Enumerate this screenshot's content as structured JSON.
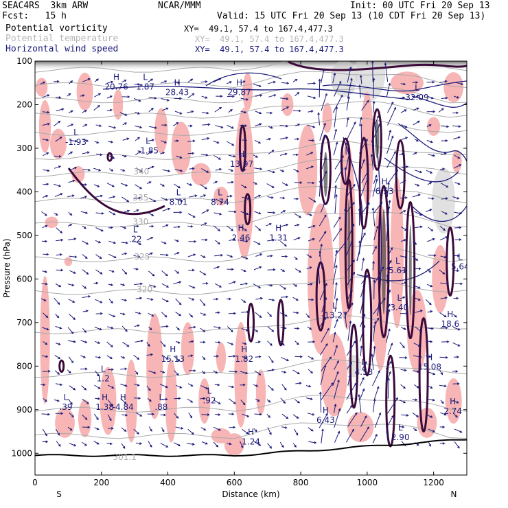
{
  "header": {
    "model": "SEAC4RS  3km ARW",
    "org": "NCAR/MMM",
    "init": "Init: 00 UTC Fri 20 Sep 13",
    "fcst": "Fcst:   15 h",
    "valid": "Valid: 15 UTC Fri 20 Sep 13 (10 CDT Fri 20 Sep 13)"
  },
  "legend": [
    {
      "label": "Potential vorticity",
      "xy": "XY=  49.1, 57.4 to 167.4,477.3",
      "color": "#000000"
    },
    {
      "label": "Potential temperature",
      "xy": "XY=  49.1, 57.4 to 167.4,477.3",
      "color": "#b4b4b4"
    },
    {
      "label": "Horizontal wind speed",
      "xy": "XY=  49.1, 57.4 to 167.4,477.3",
      "color": "#1a1a7a"
    }
  ],
  "chart_data": {
    "type": "contour_cross_section",
    "xlabel": "Distance (km)",
    "ylabel": "Pressure (hPa)",
    "x_ticks": [
      0,
      200,
      400,
      600,
      800,
      1000,
      1200
    ],
    "y_ticks": [
      100,
      200,
      300,
      400,
      500,
      600,
      700,
      800,
      900,
      1000
    ],
    "xlim": [
      0,
      1300
    ],
    "ylim": [
      1050,
      100
    ],
    "end_labels": {
      "left": "S",
      "right": "N"
    },
    "theta_labels": [
      {
        "x": 320,
        "p": 360,
        "text": "340"
      },
      {
        "x": 318,
        "p": 420,
        "text": "335"
      },
      {
        "x": 318,
        "p": 475,
        "text": "330"
      },
      {
        "x": 322,
        "p": 555,
        "text": "325"
      },
      {
        "x": 330,
        "p": 630,
        "text": "320"
      },
      {
        "x": 270,
        "p": 1015,
        "text": "301.1"
      }
    ],
    "extrema": [
      {
        "x": 245,
        "p": 165,
        "kind": "H",
        "value": "20.76"
      },
      {
        "x": 332,
        "p": 165,
        "kind": "L",
        "value": "1.87"
      },
      {
        "x": 428,
        "p": 178,
        "kind": "H",
        "value": "28.43"
      },
      {
        "x": 615,
        "p": 178,
        "kind": "H",
        "value": "29.87"
      },
      {
        "x": 1150,
        "p": 190,
        "kind": "L",
        "value": "32.09"
      },
      {
        "x": 123,
        "p": 292,
        "kind": "L",
        "value": "-1.93"
      },
      {
        "x": 340,
        "p": 312,
        "kind": "L",
        "value": "-1.85"
      },
      {
        "x": 622,
        "p": 343,
        "kind": "H",
        "value": "13.97"
      },
      {
        "x": 432,
        "p": 430,
        "kind": "L",
        "value": "8.01"
      },
      {
        "x": 557,
        "p": 430,
        "kind": "L",
        "value": "8.74"
      },
      {
        "x": 1052,
        "p": 405,
        "kind": "H",
        "value": "6.53"
      },
      {
        "x": 302,
        "p": 515,
        "kind": "L",
        "value": ".22"
      },
      {
        "x": 620,
        "p": 512,
        "kind": "H",
        "value": "2.46"
      },
      {
        "x": 733,
        "p": 512,
        "kind": "H",
        "value": "1.31"
      },
      {
        "x": 1092,
        "p": 587,
        "kind": "L",
        "value": "5.61"
      },
      {
        "x": 1280,
        "p": 578,
        "kind": "L",
        "value": "5.64"
      },
      {
        "x": 1097,
        "p": 672,
        "kind": "L",
        "value": "3.40"
      },
      {
        "x": 902,
        "p": 690,
        "kind": "L",
        "value": "-13.27"
      },
      {
        "x": 1250,
        "p": 710,
        "kind": "H",
        "value": "18.6"
      },
      {
        "x": 415,
        "p": 790,
        "kind": "H",
        "value": "15.13"
      },
      {
        "x": 630,
        "p": 790,
        "kind": "H",
        "value": "1.82"
      },
      {
        "x": 1188,
        "p": 808,
        "kind": "H",
        "value": "15.08"
      },
      {
        "x": 990,
        "p": 820,
        "kind": "L",
        "value": "4.53"
      },
      {
        "x": 205,
        "p": 835,
        "kind": "L",
        "value": "1.2"
      },
      {
        "x": 210,
        "p": 900,
        "kind": "H",
        "value": "1.38"
      },
      {
        "x": 265,
        "p": 900,
        "kind": "H",
        "value": "-4.84"
      },
      {
        "x": 380,
        "p": 900,
        "kind": "L",
        "value": ".88"
      },
      {
        "x": 525,
        "p": 885,
        "kind": "L",
        "value": ".92"
      },
      {
        "x": 93,
        "p": 900,
        "kind": "L",
        "value": ".39"
      },
      {
        "x": 1258,
        "p": 910,
        "kind": "H",
        "value": "2.74"
      },
      {
        "x": 875,
        "p": 930,
        "kind": "H",
        "value": "6.43"
      },
      {
        "x": 650,
        "p": 980,
        "kind": "H",
        "value": "1.24"
      },
      {
        "x": 1100,
        "p": 970,
        "kind": "L",
        "value": "2.90"
      }
    ]
  }
}
